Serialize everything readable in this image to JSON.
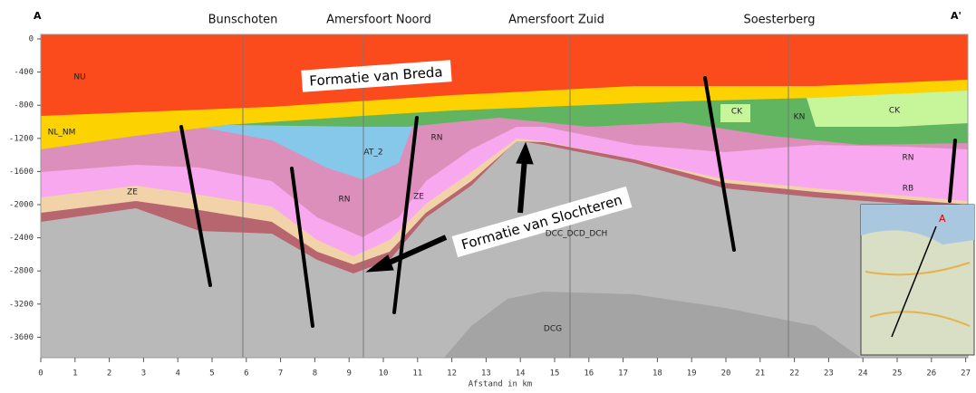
{
  "corner_labels": {
    "left": "A",
    "right": "A'"
  },
  "places": [
    "Bunschoten",
    "Amersfoort Noord",
    "Amersfoort Zuid",
    "Soesterberg"
  ],
  "depth_ticks": [
    "0",
    "-400",
    "-800",
    "-1200",
    "-1600",
    "-2000",
    "-2400",
    "-2800",
    "-3200",
    "-3600"
  ],
  "distance_ticks": [
    "0",
    "1",
    "2",
    "3",
    "4",
    "5",
    "6",
    "7",
    "8",
    "9",
    "10",
    "11",
    "12",
    "13",
    "14",
    "15",
    "16",
    "17",
    "18",
    "19",
    "20",
    "21",
    "22",
    "23",
    "24",
    "25",
    "26",
    "27"
  ],
  "x_axis_label": "Afstand in km",
  "unit_labels": [
    "NU",
    "NL_NM",
    "AT_2",
    "RN",
    "RN",
    "ZE",
    "ZE",
    "DCC_DCD_DCH",
    "DCG",
    "CK",
    "KN",
    "CK",
    "RN",
    "RB"
  ],
  "annotations": [
    "Formatie van Breda",
    "Formatie van Slochteren"
  ]
}
